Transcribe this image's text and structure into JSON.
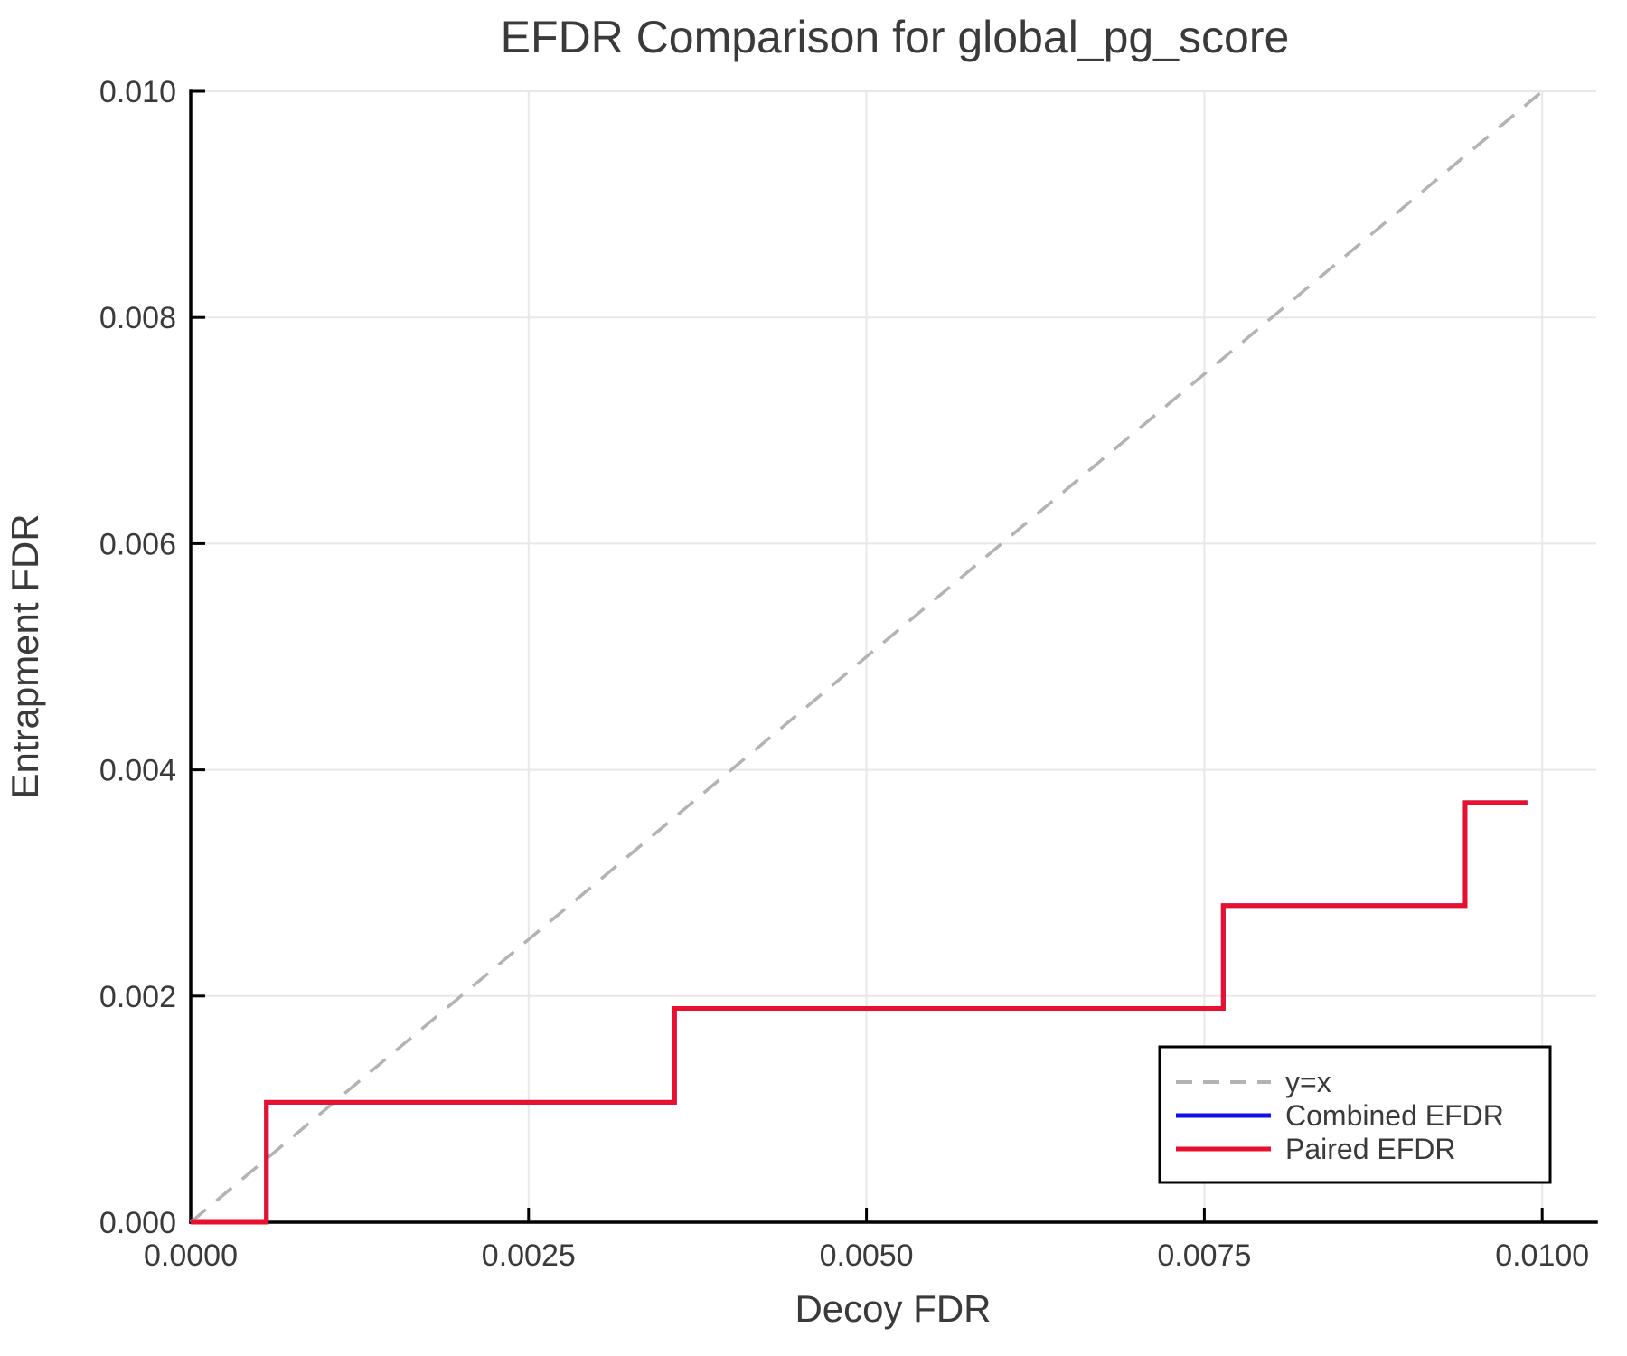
{
  "chart_data": {
    "type": "line",
    "title": "EFDR Comparison for global_pg_score",
    "xlabel": "Decoy FDR",
    "ylabel": "Entrapment FDR",
    "xlim": [
      0,
      0.0104
    ],
    "ylim": [
      0,
      0.01
    ],
    "grid": true,
    "legend_position": "lower right",
    "x_ticks": {
      "values": [
        0,
        0.0025,
        0.005,
        0.0075,
        0.01
      ],
      "labels": [
        "0.0000",
        "0.0025",
        "0.0050",
        "0.0075",
        "0.0100"
      ]
    },
    "y_ticks": {
      "values": [
        0,
        0.002,
        0.004,
        0.006,
        0.008,
        0.01
      ],
      "labels": [
        "0.000",
        "0.002",
        "0.004",
        "0.006",
        "0.008",
        "0.010"
      ]
    },
    "series": [
      {
        "name": "y=x",
        "color": "#b3b3b3",
        "dash": true,
        "width": 3.5,
        "step": false,
        "x": [
          0,
          0.01
        ],
        "y": [
          0,
          0.01
        ]
      },
      {
        "name": "Combined EFDR",
        "color": "#1212e6",
        "dash": false,
        "width": 5,
        "step": true,
        "x": [
          0,
          0.00056,
          0.00358,
          0.00764,
          0.00943,
          0.00989
        ],
        "y": [
          0,
          0.00106,
          0.00189,
          0.0028,
          0.00371,
          0.00371
        ]
      },
      {
        "name": "Paired EFDR",
        "color": "#e8112d",
        "dash": false,
        "width": 5,
        "step": true,
        "x": [
          0,
          0.00056,
          0.00358,
          0.00764,
          0.00943,
          0.00989
        ],
        "y": [
          0,
          0.00106,
          0.00189,
          0.0028,
          0.00371,
          0.00371
        ]
      }
    ],
    "colors": {
      "text": "#3a3a3a",
      "grid": "#e8e8e8",
      "spine": "#000000",
      "background": "#ffffff"
    }
  }
}
